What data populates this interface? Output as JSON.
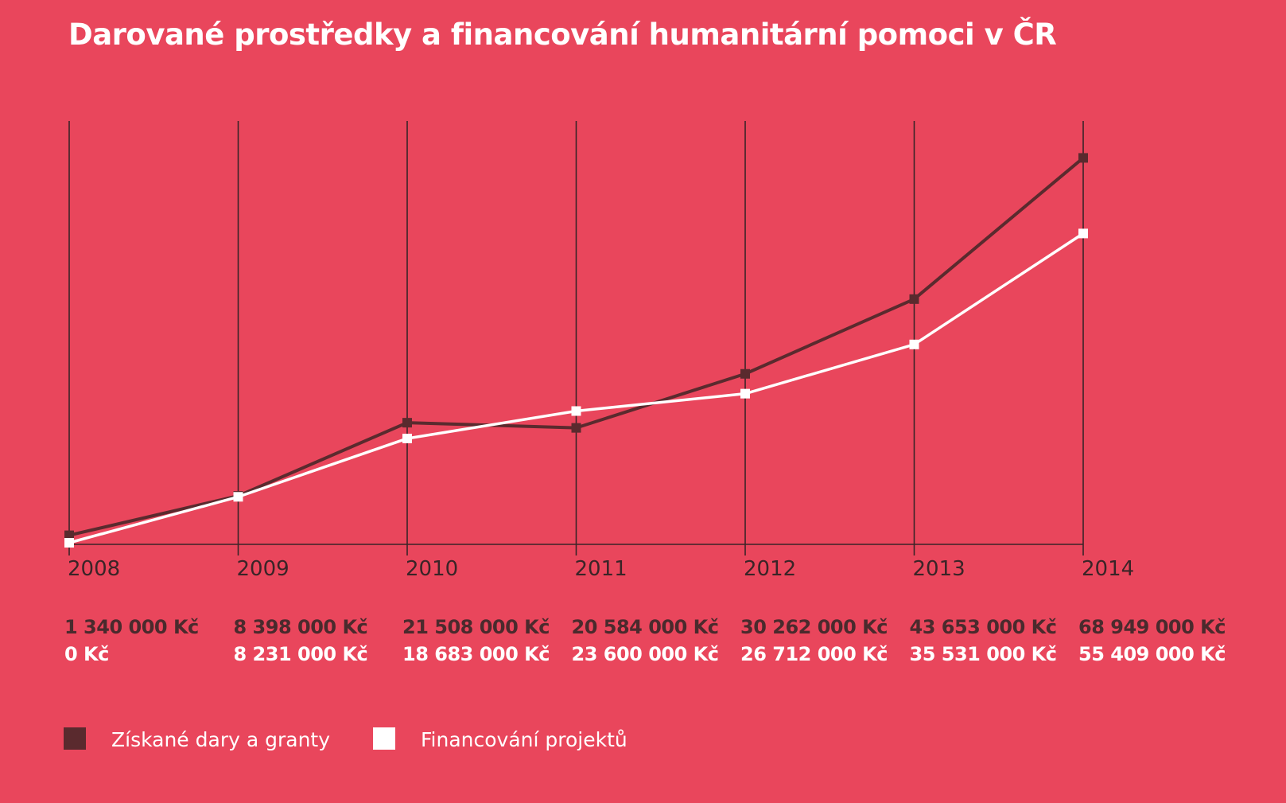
{
  "chart_data": {
    "type": "line",
    "title": "Darované prostředky a financování humanitární pomoci v ČR",
    "xlabel": "",
    "ylabel": "",
    "categories": [
      "2008",
      "2009",
      "2010",
      "2011",
      "2012",
      "2013",
      "2014"
    ],
    "series": [
      {
        "name": "Získané dary a granty",
        "color": "#5a2a2e",
        "values": [
          1340000,
          8398000,
          21508000,
          20584000,
          30262000,
          43653000,
          68949000
        ],
        "value_labels": [
          "1 340 000 Kč",
          "8 398 000 Kč",
          "21 508 000 Kč",
          "20 584 000 Kč",
          "30 262 000 Kč",
          "43 653 000 Kč",
          "68 949 000 Kč"
        ]
      },
      {
        "name": "Financování projektů",
        "color": "#ffffff",
        "values": [
          0,
          8231000,
          18683000,
          23600000,
          26712000,
          35531000,
          55409000
        ],
        "value_labels": [
          "0 Kč",
          "8 231 000 Kč",
          "18 683 000 Kč",
          "23 600 000 Kč",
          "26 712 000 Kč",
          "35 531 000 Kč",
          "55 409 000 Kč"
        ]
      }
    ],
    "ylim": [
      0,
      73000000
    ],
    "grid": "vertical",
    "legend_position": "bottom-left",
    "background": "#e9465c"
  }
}
